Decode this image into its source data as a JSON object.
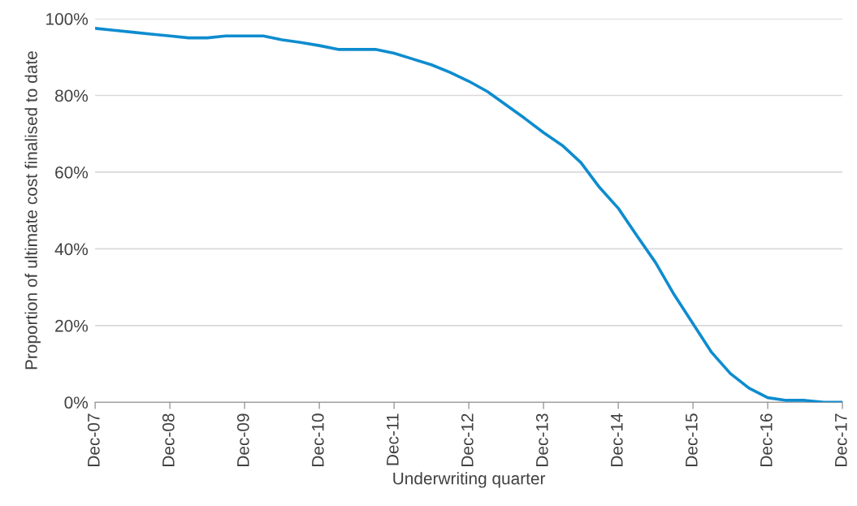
{
  "chart_data": {
    "type": "line",
    "xlabel": "Underwriting quarter",
    "ylabel": "Proportion of ultimate cost finalised to date",
    "categories": [
      "Dec-07",
      null,
      null,
      null,
      "Dec-08",
      null,
      null,
      null,
      "Dec-09",
      null,
      null,
      null,
      "Dec-10",
      null,
      null,
      null,
      "Dec-11",
      null,
      null,
      null,
      "Dec-12",
      null,
      null,
      null,
      "Dec-13",
      null,
      null,
      null,
      "Dec-14",
      null,
      null,
      null,
      "Dec-15",
      null,
      null,
      null,
      "Dec-16",
      null,
      null,
      null,
      "Dec-17"
    ],
    "series": [
      {
        "color": "#0e8ccf",
        "values": [
          97.5,
          97,
          96.5,
          96,
          95.5,
          95,
          95,
          95.5,
          95.5,
          95.5,
          94.5,
          93.8,
          93,
          92,
          92,
          92,
          91,
          89.5,
          88,
          86,
          83.7,
          81,
          77.5,
          74,
          70.3,
          67,
          62.5,
          56,
          50.6,
          43.4,
          36.4,
          28,
          20.5,
          13,
          7.5,
          3.7,
          1.2,
          0.5,
          0.5,
          0,
          0
        ]
      }
    ],
    "ylim": [
      0,
      100
    ],
    "yticks": [
      {
        "value": 0,
        "label": "0%"
      },
      {
        "value": 20,
        "label": "20%"
      },
      {
        "value": 40,
        "label": "40%"
      },
      {
        "value": 60,
        "label": "60%"
      },
      {
        "value": 80,
        "label": "80%"
      },
      {
        "value": 100,
        "label": "100%"
      }
    ],
    "grid": "y",
    "marker": "none",
    "line_style": "solid"
  }
}
